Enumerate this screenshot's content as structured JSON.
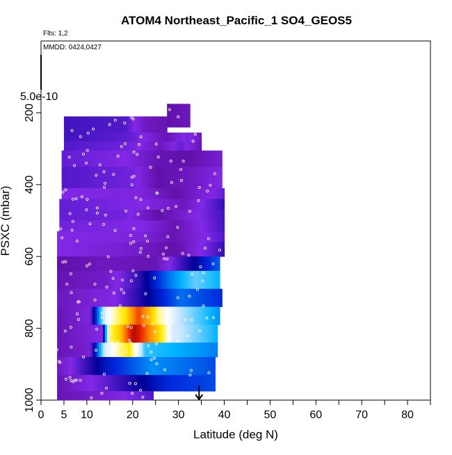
{
  "chart_data": {
    "type": "heatmap",
    "title": "ATOM4 Northeast_Pacific_1 SO4_GEOS5",
    "annotation_flights": "Flts: 1,2",
    "annotation_dates": "MMDD: 0424,0427",
    "colorbar_max_label": "5.0e-10",
    "xlabel": "Latitude (deg N)",
    "ylabel": "PSXC (mbar)",
    "xlim": [
      0,
      85
    ],
    "ylim": [
      1000,
      0
    ],
    "x_ticks": [
      0,
      5,
      10,
      15,
      20,
      25,
      30,
      35,
      40,
      45,
      50,
      55,
      60,
      65,
      70,
      75,
      80,
      85
    ],
    "x_tick_labels": [
      "0",
      "5",
      "10",
      "",
      "20",
      "",
      "30",
      "",
      "40",
      "",
      "50",
      "",
      "60",
      "",
      "70",
      "",
      "80",
      ""
    ],
    "y_ticks": [
      200,
      400,
      600,
      800,
      1000
    ],
    "y_tick_labels": [
      "200",
      "400",
      "600",
      "800",
      "1000"
    ],
    "arrow_latitude": 34.5,
    "grid": false,
    "bands": [
      {
        "pmin": 175,
        "pmax": 240,
        "lat0": 27.5,
        "lat1": 32.5,
        "profile": [
          [
            0,
            0.04
          ],
          [
            1,
            0.06
          ]
        ]
      },
      {
        "pmin": 210,
        "pmax": 255,
        "lat0": 5,
        "lat1": 27.5,
        "profile": [
          [
            0,
            0.14
          ],
          [
            0.6,
            0.13
          ],
          [
            0.8,
            0.06
          ],
          [
            1,
            0.05
          ]
        ]
      },
      {
        "pmin": 255,
        "pmax": 280,
        "lat0": 5,
        "lat1": 35,
        "profile": [
          [
            0,
            0.14
          ],
          [
            0.5,
            0.12
          ],
          [
            0.75,
            0.05
          ],
          [
            0.9,
            0.11
          ],
          [
            1,
            0.06
          ]
        ]
      },
      {
        "pmin": 280,
        "pmax": 305,
        "lat0": 5,
        "lat1": 35,
        "profile": [
          [
            0,
            0.13
          ],
          [
            0.5,
            0.11
          ],
          [
            0.7,
            0.06
          ],
          [
            0.85,
            0.12
          ],
          [
            1,
            0.05
          ]
        ]
      },
      {
        "pmin": 305,
        "pmax": 350,
        "lat0": 4.5,
        "lat1": 39.5,
        "profile": [
          [
            0,
            0.12
          ],
          [
            0.4,
            0.1
          ],
          [
            0.6,
            0.05
          ],
          [
            0.8,
            0.04
          ],
          [
            1,
            0.08
          ]
        ]
      },
      {
        "pmin": 350,
        "pmax": 410,
        "lat0": 4.5,
        "lat1": 39.5,
        "profile": [
          [
            0,
            0.13
          ],
          [
            0.45,
            0.11
          ],
          [
            0.6,
            0.04
          ],
          [
            0.85,
            0.07
          ],
          [
            1,
            0.1
          ]
        ]
      },
      {
        "pmin": 410,
        "pmax": 440,
        "lat0": 4.5,
        "lat1": 40,
        "profile": [
          [
            0,
            0.1
          ],
          [
            0.5,
            0.09
          ],
          [
            0.7,
            0.04
          ],
          [
            1,
            0.12
          ]
        ]
      },
      {
        "pmin": 440,
        "pmax": 470,
        "lat0": 4,
        "lat1": 40,
        "profile": [
          [
            0,
            0.12
          ],
          [
            0.5,
            0.1
          ],
          [
            0.75,
            0.06
          ],
          [
            1,
            0.15
          ]
        ]
      },
      {
        "pmin": 470,
        "pmax": 500,
        "lat0": 4,
        "lat1": 40,
        "profile": [
          [
            0,
            0.12
          ],
          [
            0.4,
            0.11
          ],
          [
            0.6,
            0.04
          ],
          [
            1,
            0.14
          ]
        ]
      },
      {
        "pmin": 500,
        "pmax": 530,
        "lat0": 4,
        "lat1": 40,
        "profile": [
          [
            0,
            0.11
          ],
          [
            0.5,
            0.1
          ],
          [
            0.7,
            0.05
          ],
          [
            1,
            0.14
          ]
        ]
      },
      {
        "pmin": 530,
        "pmax": 560,
        "lat0": 3.5,
        "lat1": 40,
        "profile": [
          [
            0,
            0.1
          ],
          [
            0.5,
            0.09
          ],
          [
            0.7,
            0.05
          ],
          [
            1,
            0.13
          ]
        ]
      },
      {
        "pmin": 560,
        "pmax": 600,
        "lat0": 3.5,
        "lat1": 40,
        "profile": [
          [
            0,
            0.1
          ],
          [
            0.4,
            0.08
          ],
          [
            0.7,
            0.04
          ],
          [
            1,
            0.15
          ]
        ]
      },
      {
        "pmin": 600,
        "pmax": 640,
        "lat0": 3.5,
        "lat1": 39,
        "profile": [
          [
            0,
            0.04
          ],
          [
            0.3,
            0.06
          ],
          [
            0.6,
            0.05
          ],
          [
            0.8,
            0.16
          ],
          [
            1,
            0.25
          ]
        ]
      },
      {
        "pmin": 640,
        "pmax": 690,
        "lat0": 3.5,
        "lat1": 39,
        "profile": [
          [
            0,
            0.05
          ],
          [
            0.3,
            0.07
          ],
          [
            0.5,
            0.15
          ],
          [
            0.7,
            0.27
          ],
          [
            0.85,
            0.34
          ],
          [
            1,
            0.3
          ]
        ]
      },
      {
        "pmin": 690,
        "pmax": 740,
        "lat0": 3.5,
        "lat1": 39.5,
        "profile": [
          [
            0,
            0.06
          ],
          [
            0.35,
            0.1
          ],
          [
            0.55,
            0.18
          ],
          [
            0.75,
            0.26
          ],
          [
            1,
            0.22
          ]
        ]
      },
      {
        "pmin": 740,
        "pmax": 790,
        "lat0": 3.5,
        "lat1": 39,
        "profile": [
          [
            0,
            0.05
          ],
          [
            0.2,
            0.09
          ],
          [
            0.3,
            0.42
          ],
          [
            0.42,
            0.56
          ],
          [
            0.5,
            0.8
          ],
          [
            0.62,
            0.5
          ],
          [
            0.75,
            0.38
          ],
          [
            1,
            0.28
          ]
        ]
      },
      {
        "pmin": 790,
        "pmax": 840,
        "lat0": 3.5,
        "lat1": 38.5,
        "profile": [
          [
            0,
            0.05
          ],
          [
            0.28,
            0.1
          ],
          [
            0.33,
            0.5
          ],
          [
            0.4,
            0.62
          ],
          [
            0.48,
            0.95
          ],
          [
            0.58,
            0.7
          ],
          [
            0.72,
            0.4
          ],
          [
            1,
            0.3
          ]
        ]
      },
      {
        "pmin": 840,
        "pmax": 880,
        "lat0": 3.5,
        "lat1": 38.5,
        "profile": [
          [
            0,
            0.05
          ],
          [
            0.2,
            0.08
          ],
          [
            0.3,
            0.4
          ],
          [
            0.45,
            0.55
          ],
          [
            0.55,
            0.32
          ],
          [
            1,
            0.27
          ]
        ]
      },
      {
        "pmin": 880,
        "pmax": 930,
        "lat0": 3.5,
        "lat1": 38,
        "profile": [
          [
            0,
            0.06
          ],
          [
            0.3,
            0.2
          ],
          [
            0.6,
            0.28
          ],
          [
            1,
            0.24
          ]
        ]
      },
      {
        "pmin": 930,
        "pmax": 975,
        "lat0": 3.5,
        "lat1": 38,
        "profile": [
          [
            0,
            0.05
          ],
          [
            0.3,
            0.12
          ],
          [
            0.5,
            0.17
          ],
          [
            0.7,
            0.22
          ],
          [
            1,
            0.24
          ]
        ]
      },
      {
        "pmin": 975,
        "pmax": 1000,
        "lat0": 3.5,
        "lat1": 24.5,
        "profile": [
          [
            0,
            0.05
          ],
          [
            0.5,
            0.08
          ],
          [
            1,
            0.13
          ]
        ]
      }
    ]
  }
}
